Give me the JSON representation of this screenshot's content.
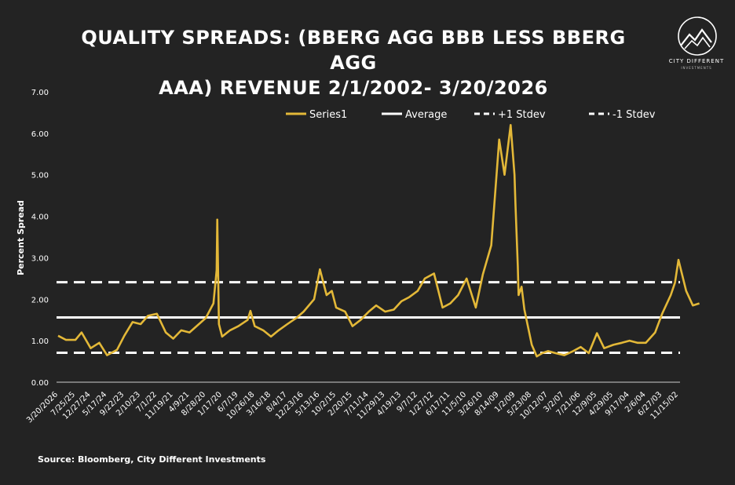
{
  "title_line1": "QUALITY SPREADS: (BBERG AGG BBB LESS BBERG AGG",
  "title_line2": "AAA) REVENUE 2/1/2002- 3/20/2026",
  "logo": {
    "name": "CITY DIFFERENT",
    "sub": "INVESTMENTS"
  },
  "source": "Source: Bloomberg, City Different Investments",
  "colors": {
    "background": "#232323",
    "series": "#E3B838",
    "reference": "#FFFFFF"
  },
  "chart_data": {
    "type": "line",
    "title": "QUALITY SPREADS: (BBERG AGG BBB LESS BBERG AGG AAA) REVENUE 2/1/2002- 3/20/2026",
    "ylabel": "Percent Spread",
    "xlabel": "",
    "ylim": [
      0,
      7
    ],
    "yticks": [
      "0.00",
      "1.00",
      "2.00",
      "3.00",
      "4.00",
      "5.00",
      "6.00",
      "7.00"
    ],
    "x_axis_order": "reverse-chronological (newest on left)",
    "xtick_labels": [
      "3/20/2026",
      "7/25/25",
      "12/27/24",
      "5/17/24",
      "9/22/23",
      "2/10/23",
      "7/1/22",
      "11/19/21",
      "4/9/21",
      "8/28/20",
      "1/17/20",
      "6/7/19",
      "10/26/18",
      "3/16/18",
      "8/4/17",
      "12/23/16",
      "5/13/16",
      "10/2/15",
      "2/20/15",
      "7/11/14",
      "11/29/13",
      "4/19/13",
      "9/7/12",
      "1/27/12",
      "6/17/11",
      "11/5/10",
      "3/26/10",
      "8/14/09",
      "1/2/09",
      "5/23/08",
      "10/12/07",
      "3/2/07",
      "7/21/06",
      "12/9/05",
      "4/29/05",
      "9/17/04",
      "2/6/04",
      "6/27/03",
      "11/15/02"
    ],
    "grid": false,
    "legend_position": "top",
    "series": [
      {
        "name": "Series1",
        "style": "solid",
        "x": [
          "3/20/2026",
          "12/1/2025",
          "7/25/25",
          "5/1/25",
          "12/27/24",
          "9/1/24",
          "5/17/24",
          "1/1/24",
          "9/22/23",
          "6/1/23",
          "2/10/23",
          "11/1/22",
          "7/1/22",
          "3/1/22",
          "11/19/21",
          "8/1/21",
          "4/9/21",
          "12/1/20",
          "8/28/20",
          "5/15/20",
          "4/1/20",
          "3/23/20",
          "3/1/20",
          "1/17/20",
          "10/1/19",
          "6/7/19",
          "2/1/19",
          "12/24/18",
          "10/26/18",
          "7/1/18",
          "3/16/18",
          "12/1/17",
          "8/4/17",
          "4/1/17",
          "12/23/16",
          "8/1/16",
          "5/13/16",
          "2/11/16",
          "12/1/15",
          "10/2/15",
          "6/1/15",
          "2/20/15",
          "11/1/14",
          "7/11/14",
          "4/1/14",
          "11/29/13",
          "8/1/13",
          "4/19/13",
          "1/1/13",
          "9/7/12",
          "6/1/12",
          "1/27/12",
          "10/1/11",
          "6/17/11",
          "3/1/11",
          "11/5/10",
          "7/1/10",
          "3/26/10",
          "12/1/09",
          "8/14/09",
          "6/1/09",
          "3/9/09",
          "1/15/09",
          "1/2/09",
          "12/1/08",
          "11/20/08",
          "10/10/08",
          "9/1/08",
          "5/23/08",
          "3/15/08",
          "1/1/08",
          "10/12/07",
          "7/1/07",
          "3/2/07",
          "11/1/06",
          "7/21/06",
          "4/1/06",
          "12/9/05",
          "9/1/05",
          "4/29/05",
          "1/1/05",
          "9/17/04",
          "6/1/04",
          "2/6/04",
          "10/1/03",
          "6/27/03",
          "3/1/03",
          "1/1/03",
          "11/15/02",
          "8/1/02",
          "5/1/02",
          "2/1/02"
        ],
        "values": [
          1.12,
          1.02,
          1.02,
          1.2,
          0.82,
          0.95,
          0.65,
          0.78,
          1.12,
          1.45,
          1.4,
          1.6,
          1.65,
          1.2,
          1.05,
          1.25,
          1.2,
          1.4,
          1.55,
          1.9,
          2.7,
          3.92,
          1.4,
          1.1,
          1.25,
          1.35,
          1.5,
          1.72,
          1.35,
          1.25,
          1.1,
          1.25,
          1.4,
          1.55,
          1.7,
          2.0,
          2.72,
          2.1,
          2.2,
          1.8,
          1.7,
          1.35,
          1.5,
          1.7,
          1.85,
          1.7,
          1.75,
          1.95,
          2.05,
          2.2,
          2.5,
          2.62,
          1.8,
          1.9,
          2.1,
          2.5,
          1.8,
          2.6,
          3.3,
          5.85,
          5.0,
          6.2,
          5.0,
          4.3,
          2.8,
          2.1,
          2.3,
          1.75,
          0.9,
          0.62,
          0.7,
          0.75,
          0.7,
          0.65,
          0.75,
          0.85,
          0.7,
          1.18,
          0.82,
          0.9,
          0.95,
          1.0,
          0.95,
          0.95,
          1.2,
          1.65,
          2.1,
          2.4,
          2.95,
          2.2,
          1.85,
          1.9
        ]
      },
      {
        "name": "Average",
        "style": "solid",
        "value": 1.56
      },
      {
        "name": "+1 Stdev",
        "style": "dashed",
        "value": 2.41
      },
      {
        "name": "-1 Stdev",
        "style": "dashed",
        "value": 0.71
      }
    ]
  }
}
